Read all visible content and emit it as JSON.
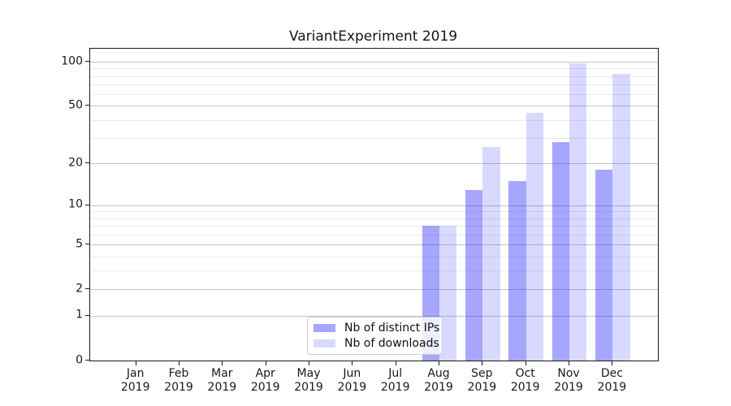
{
  "chart_data": {
    "type": "bar",
    "title": "VariantExperiment 2019",
    "categories": [
      "Jan 2019",
      "Feb 2019",
      "Mar 2019",
      "Apr 2019",
      "May 2019",
      "Jun 2019",
      "Jul 2019",
      "Aug 2019",
      "Sep 2019",
      "Oct 2019",
      "Nov 2019",
      "Dec 2019"
    ],
    "series": [
      {
        "name": "Nb of distinct IPs",
        "color_hex": "#a6a6ff",
        "fill_rgba": "rgba(0,0,255,0.35)",
        "values": [
          0,
          0,
          0,
          0,
          0,
          0,
          0,
          7,
          13,
          15,
          28,
          18
        ]
      },
      {
        "name": "Nb of downloads",
        "color_hex": "#d9d9ff",
        "fill_rgba": "rgba(0,0,255,0.15)",
        "values": [
          0,
          0,
          0,
          0,
          0,
          0,
          0,
          7,
          26,
          45,
          97,
          83
        ]
      }
    ],
    "xlabel": "",
    "ylabel": "",
    "y_axis": {
      "scale": "symlog",
      "major_ticks": [
        0,
        1,
        2,
        5,
        10,
        20,
        50,
        100
      ],
      "minor_ticks": [
        3,
        4,
        6,
        7,
        8,
        9,
        30,
        40,
        60,
        70,
        80,
        90
      ],
      "ylim": [
        0,
        122
      ]
    },
    "grid": {
      "major_color": "#c6c6c6",
      "minor_color": "#ebebeb",
      "visible": true
    },
    "legend": {
      "position": "lower-center-inside"
    },
    "axes_color": "#1a1a1a"
  }
}
